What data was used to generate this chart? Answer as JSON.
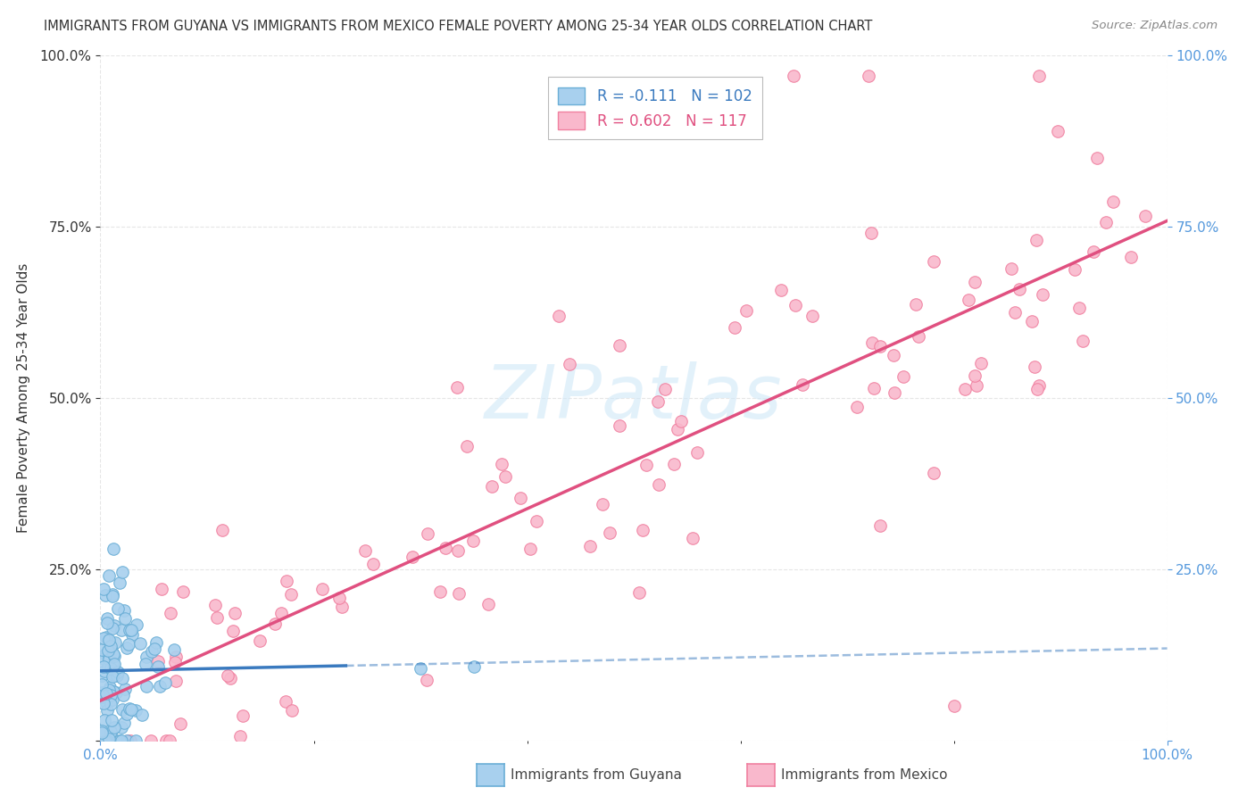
{
  "title": "IMMIGRANTS FROM GUYANA VS IMMIGRANTS FROM MEXICO FEMALE POVERTY AMONG 25-34 YEAR OLDS CORRELATION CHART",
  "source": "Source: ZipAtlas.com",
  "ylabel": "Female Poverty Among 25-34 Year Olds",
  "guyana_R": -0.111,
  "guyana_N": 102,
  "mexico_R": 0.602,
  "mexico_N": 117,
  "guyana_color": "#a8d0ee",
  "mexico_color": "#f9b8cc",
  "guyana_edge_color": "#6aaed6",
  "mexico_edge_color": "#f080a0",
  "guyana_line_color": "#3a7abf",
  "mexico_line_color": "#e05080",
  "right_axis_color": "#5599dd",
  "watermark_color": "#d0e8f8",
  "background_color": "#ffffff",
  "grid_color": "#e0e0e0",
  "title_color": "#333333",
  "source_color": "#888888",
  "ylabel_color": "#333333",
  "tick_color": "#333333",
  "legend_text_guyana_color": "#3a7abf",
  "legend_text_mexico_color": "#e05080"
}
